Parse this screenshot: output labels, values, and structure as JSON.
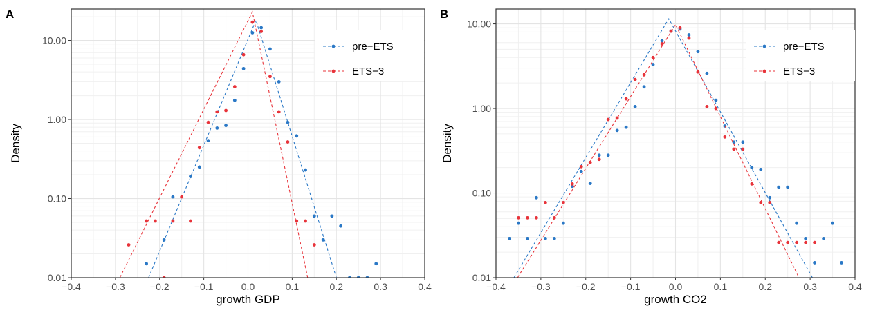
{
  "colors": {
    "pre": "#2a78c6",
    "ets": "#e8333a"
  },
  "chart_data": [
    {
      "tag": "A",
      "type": "scatter",
      "xlabel": "growth GDP",
      "ylabel": "Density",
      "xlim": [
        -0.4,
        0.4
      ],
      "ylim": [
        0.01,
        25
      ],
      "y_scale": "log",
      "x_ticks": [
        "−0.4",
        "−0.3",
        "−0.2",
        "−0.1",
        "0.0",
        "0.1",
        "0.2",
        "0.3",
        "0.4"
      ],
      "y_ticks": [
        {
          "v": 0.01,
          "label": "0.01"
        },
        {
          "v": 0.1,
          "label": "0.10"
        },
        {
          "v": 1,
          "label": "1.00"
        },
        {
          "v": 10,
          "label": "10.00"
        }
      ],
      "legend": {
        "position": "top-right"
      },
      "series": [
        {
          "name": "pre−ETS",
          "color": "#2a78c6",
          "points": [
            [
              -0.23,
              0.015
            ],
            [
              -0.19,
              0.03
            ],
            [
              -0.17,
              0.105
            ],
            [
              -0.13,
              0.19
            ],
            [
              -0.11,
              0.25
            ],
            [
              -0.09,
              0.54
            ],
            [
              -0.07,
              0.78
            ],
            [
              -0.05,
              0.84
            ],
            [
              -0.03,
              1.75
            ],
            [
              -0.01,
              4.4
            ],
            [
              0.01,
              12.5
            ],
            [
              0.03,
              14.5
            ],
            [
              0.05,
              7.8
            ],
            [
              0.07,
              3.0
            ],
            [
              0.09,
              0.92
            ],
            [
              0.11,
              0.62
            ],
            [
              0.13,
              0.23
            ],
            [
              0.15,
              0.06
            ],
            [
              0.17,
              0.03
            ],
            [
              0.19,
              0.06
            ],
            [
              0.21,
              0.045
            ],
            [
              0.23,
              0.01
            ],
            [
              0.25,
              0.01
            ],
            [
              0.27,
              0.01
            ],
            [
              0.29,
              0.015
            ]
          ],
          "fit": [
            [
              -0.225,
              0.01
            ],
            [
              0.018,
              18.0
            ],
            [
              0.2,
              0.01
            ]
          ]
        },
        {
          "name": "ETS−3",
          "color": "#e8333a",
          "points": [
            [
              -0.27,
              0.026
            ],
            [
              -0.23,
              0.052
            ],
            [
              -0.21,
              0.052
            ],
            [
              -0.19,
              0.01
            ],
            [
              -0.17,
              0.052
            ],
            [
              -0.15,
              0.105
            ],
            [
              -0.13,
              0.052
            ],
            [
              -0.11,
              0.44
            ],
            [
              -0.09,
              0.92
            ],
            [
              -0.07,
              1.25
            ],
            [
              -0.05,
              1.3
            ],
            [
              -0.03,
              2.6
            ],
            [
              -0.01,
              6.6
            ],
            [
              0.01,
              17.0
            ],
            [
              0.03,
              13.0
            ],
            [
              0.05,
              3.5
            ],
            [
              0.07,
              1.25
            ],
            [
              0.09,
              0.52
            ],
            [
              0.11,
              0.052
            ],
            [
              0.13,
              0.052
            ],
            [
              0.15,
              0.026
            ]
          ],
          "fit": [
            [
              -0.29,
              0.01
            ],
            [
              0.01,
              23.0
            ],
            [
              0.135,
              0.01
            ]
          ]
        }
      ]
    },
    {
      "tag": "B",
      "type": "scatter",
      "xlabel": "growth CO2",
      "ylabel": "Density",
      "xlim": [
        -0.4,
        0.4
      ],
      "ylim": [
        0.01,
        15
      ],
      "y_scale": "log",
      "x_ticks": [
        "−0.4",
        "−0.3",
        "−0.2",
        "−0.1",
        "0.0",
        "0.1",
        "0.2",
        "0.3",
        "0.4"
      ],
      "y_ticks": [
        {
          "v": 0.01,
          "label": "0.01"
        },
        {
          "v": 0.1,
          "label": "0.10"
        },
        {
          "v": 1,
          "label": "1.00"
        },
        {
          "v": 10,
          "label": "10.00"
        }
      ],
      "legend": {
        "position": "top-right"
      },
      "series": [
        {
          "name": "pre−ETS",
          "color": "#2a78c6",
          "points": [
            [
              -0.37,
              0.029
            ],
            [
              -0.35,
              0.044
            ],
            [
              -0.33,
              0.029
            ],
            [
              -0.31,
              0.088
            ],
            [
              -0.29,
              0.029
            ],
            [
              -0.27,
              0.029
            ],
            [
              -0.25,
              0.044
            ],
            [
              -0.23,
              0.12
            ],
            [
              -0.21,
              0.18
            ],
            [
              -0.19,
              0.13
            ],
            [
              -0.17,
              0.28
            ],
            [
              -0.15,
              0.28
            ],
            [
              -0.13,
              0.55
            ],
            [
              -0.11,
              0.6
            ],
            [
              -0.09,
              1.05
            ],
            [
              -0.07,
              1.8
            ],
            [
              -0.05,
              3.3
            ],
            [
              -0.03,
              6.3
            ],
            [
              -0.01,
              8.2
            ],
            [
              0.01,
              8.7
            ],
            [
              0.03,
              7.4
            ],
            [
              0.05,
              4.7
            ],
            [
              0.07,
              2.6
            ],
            [
              0.09,
              1.25
            ],
            [
              0.11,
              0.62
            ],
            [
              0.13,
              0.4
            ],
            [
              0.15,
              0.4
            ],
            [
              0.17,
              0.2
            ],
            [
              0.19,
              0.19
            ],
            [
              0.21,
              0.088
            ],
            [
              0.23,
              0.117
            ],
            [
              0.25,
              0.117
            ],
            [
              0.27,
              0.044
            ],
            [
              0.29,
              0.029
            ],
            [
              0.31,
              0.015
            ],
            [
              0.33,
              0.029
            ],
            [
              0.35,
              0.044
            ],
            [
              0.37,
              0.015
            ]
          ],
          "fit": [
            [
              -0.36,
              0.01
            ],
            [
              -0.015,
              11.5
            ],
            [
              0.305,
              0.01
            ]
          ]
        },
        {
          "name": "ETS−3",
          "color": "#e8333a",
          "points": [
            [
              -0.35,
              0.051
            ],
            [
              -0.33,
              0.051
            ],
            [
              -0.31,
              0.051
            ],
            [
              -0.29,
              0.077
            ],
            [
              -0.27,
              0.051
            ],
            [
              -0.25,
              0.077
            ],
            [
              -0.23,
              0.128
            ],
            [
              -0.21,
              0.205
            ],
            [
              -0.19,
              0.23
            ],
            [
              -0.17,
              0.25
            ],
            [
              -0.15,
              0.74
            ],
            [
              -0.13,
              0.77
            ],
            [
              -0.11,
              1.3
            ],
            [
              -0.09,
              2.2
            ],
            [
              -0.07,
              2.5
            ],
            [
              -0.05,
              4.0
            ],
            [
              -0.03,
              5.8
            ],
            [
              -0.01,
              8.2
            ],
            [
              0.01,
              9.0
            ],
            [
              0.03,
              6.8
            ],
            [
              0.05,
              2.7
            ],
            [
              0.07,
              1.05
            ],
            [
              0.09,
              1.0
            ],
            [
              0.11,
              0.46
            ],
            [
              0.13,
              0.33
            ],
            [
              0.15,
              0.33
            ],
            [
              0.17,
              0.128
            ],
            [
              0.19,
              0.077
            ],
            [
              0.21,
              0.077
            ],
            [
              0.23,
              0.026
            ],
            [
              0.25,
              0.026
            ],
            [
              0.27,
              0.026
            ],
            [
              0.29,
              0.026
            ],
            [
              0.31,
              0.026
            ]
          ],
          "fit": [
            [
              -0.352,
              0.01
            ],
            [
              0.0,
              9.8
            ],
            [
              0.275,
              0.01
            ]
          ]
        }
      ]
    }
  ]
}
